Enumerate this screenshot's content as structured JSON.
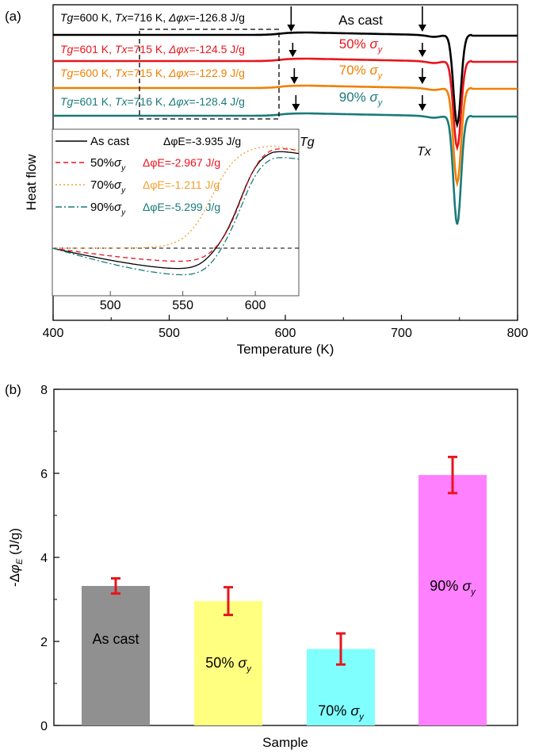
{
  "chart_data": [
    {
      "panel_label": "(a)",
      "type": "line",
      "xlabel": "Temperature (K)",
      "ylabel": "Heat flow",
      "xlim": [
        400,
        800
      ],
      "xticks": [
        400,
        500,
        600,
        700,
        800
      ],
      "series": [
        {
          "name": "As cast",
          "color": "#000000",
          "Tg_label": "Tg=600 K, Tx=716 K, Δφx=-126.8 J/g",
          "offset": 0,
          "valley": 0.62
        },
        {
          "name": "50% σy",
          "color": "#e8141c",
          "Tg_label": "Tg=601 K, Tx=715 K, Δφx=-124.5 J/g",
          "offset": 1,
          "valley": 0.58
        },
        {
          "name": "70% σy",
          "color": "#f08000",
          "Tg_label": "Tg=600 K, Tx=715 K, Δφx=-122.9 J/g",
          "offset": 2,
          "valley": 0.6
        },
        {
          "name": "90% σy",
          "color": "#1a7a7a",
          "Tg_label": "Tg=601 K, Tx=716 K, Δφx=-128.4 J/g",
          "offset": 3,
          "valley": 0.66
        }
      ],
      "annotations": {
        "tg": "Tg",
        "tx": "Tx",
        "tg_temp": 605,
        "tx_temp": 718
      },
      "inset": {
        "xlim": [
          460,
          630
        ],
        "xticks": [
          500,
          550,
          600
        ],
        "legend": [
          {
            "name": "As cast",
            "energy": "ΔφE=-3.935 J/g",
            "color": "#000000",
            "dash": ""
          },
          {
            "name": "50%σy",
            "energy": "ΔφE=-2.967 J/g",
            "color": "#e8141c",
            "dash": "6,4"
          },
          {
            "name": "70%σy",
            "energy": "ΔφE=-1.211 J/g",
            "color": "#f0a030",
            "dash": "2,3"
          },
          {
            "name": "90%σy",
            "energy": "ΔφE=-5.299 J/g",
            "color": "#1a7a7a",
            "dash": "8,3,2,3"
          }
        ]
      }
    },
    {
      "panel_label": "(b)",
      "type": "bar",
      "xlabel": "Sample",
      "ylabel": "-ΔφE (J/g)",
      "ylim": [
        0,
        8
      ],
      "yticks": [
        0,
        2,
        4,
        6,
        8
      ],
      "categories": [
        "As cast",
        "50% σy",
        "70% σy",
        "90% σy"
      ],
      "values": [
        3.32,
        2.96,
        1.82,
        5.96
      ],
      "errors": [
        0.18,
        0.33,
        0.37,
        0.43
      ],
      "colors": [
        "#909090",
        "#ffff80",
        "#80ffff",
        "#ff80ff"
      ],
      "error_color": "#e8141c"
    }
  ]
}
